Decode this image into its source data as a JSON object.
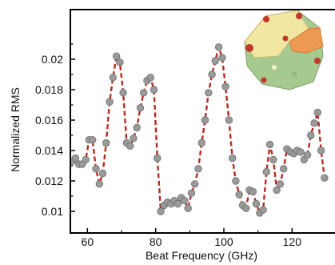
{
  "chart_data": {
    "type": "scatter",
    "title": "",
    "xlabel": "Beat Frequency (GHz)",
    "ylabel": "Normalized RMS",
    "xlim": [
      55,
      130
    ],
    "ylim": [
      0.009,
      0.0212
    ],
    "xticks": [
      60,
      80,
      100,
      120
    ],
    "yticks": [
      0.01,
      0.012,
      0.014,
      0.016,
      0.018,
      0.02
    ],
    "xtick_labels": [
      "60",
      "80",
      "100",
      "120"
    ],
    "ytick_labels": [
      "0.01",
      "0.012",
      "0.014",
      "0.016",
      "0.018",
      "0.02"
    ],
    "grid": false,
    "legend": "none",
    "colors": {
      "marker_fill": "#9a9a9a",
      "marker_edge": "#6e6e6e",
      "line": "#b52a22"
    },
    "series": [
      {
        "style": "markers with dashed connecting line",
        "x": [
          55.5,
          56.5,
          57.5,
          58.5,
          59.5,
          60.5,
          61.5,
          62.5,
          63.5,
          64.5,
          65.5,
          66.5,
          67.5,
          68.5,
          69.5,
          70.5,
          71.5,
          72.5,
          73.5,
          74.5,
          75.5,
          76.5,
          77.5,
          78.5,
          79.5,
          80.5,
          81.5,
          82.5,
          83.5,
          84.5,
          85.5,
          86.5,
          87.5,
          88.5,
          89.5,
          90.5,
          91.5,
          92.5,
          93.5,
          94.5,
          95.5,
          96.5,
          97.5,
          98.5,
          99.5,
          100.5,
          101.5,
          102.5,
          103.5,
          104.5,
          105.5,
          106.5,
          107.5,
          108.5,
          109.5,
          110.5,
          111.5,
          112.5,
          113.5,
          114.5,
          115.5,
          116.5,
          117.5,
          118.5,
          119.5,
          120.5,
          121.5,
          122.5,
          123.5,
          124.5,
          125.5,
          126.5,
          127.5,
          128.5,
          129.5
        ],
        "y": [
          0.0133,
          0.0135,
          0.0131,
          0.0131,
          0.0134,
          0.0147,
          0.0147,
          0.0128,
          0.0118,
          0.0125,
          0.0145,
          0.0172,
          0.0188,
          0.0202,
          0.0198,
          0.0178,
          0.0145,
          0.0143,
          0.0148,
          0.0155,
          0.0168,
          0.0178,
          0.0186,
          0.0188,
          0.018,
          0.0135,
          0.01,
          0.0104,
          0.0106,
          0.0105,
          0.0107,
          0.0105,
          0.0109,
          0.0107,
          0.0102,
          0.0112,
          0.0118,
          0.0128,
          0.0145,
          0.016,
          0.0178,
          0.019,
          0.0199,
          0.0208,
          0.0201,
          0.0182,
          0.016,
          0.0135,
          0.012,
          0.0111,
          0.0104,
          0.0102,
          0.0114,
          0.0113,
          0.0105,
          0.0099,
          0.0101,
          0.0126,
          0.0144,
          0.0134,
          0.0114,
          0.0118,
          0.0128,
          0.0141,
          0.0139,
          0.0138,
          0.014,
          0.0139,
          0.0134,
          0.0137,
          0.015,
          0.0158,
          0.0165,
          0.014,
          0.0122
        ]
      }
    ],
    "inset": "protein-structure-illustration"
  }
}
